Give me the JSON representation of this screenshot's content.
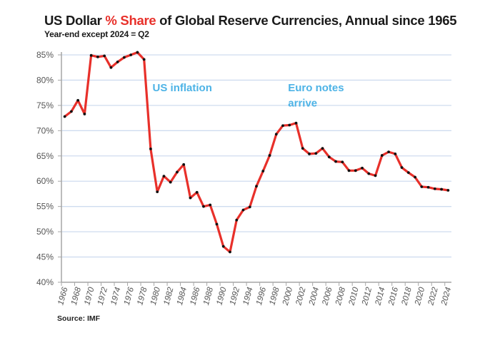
{
  "header": {
    "title_prefix": "US Dollar ",
    "title_highlight": "% Share",
    "title_suffix": " of Global Reserve Currencies, Annual since 1965",
    "subtitle": "Year-end except 2024 = Q2"
  },
  "footer": {
    "source": "Source: IMF"
  },
  "colors": {
    "line": "#e8302a",
    "marker": "#111111",
    "grid": "#cfdcef",
    "axis": "#a6a6a6",
    "annotation": "#4db3e6",
    "title_highlight": "#e8302a"
  },
  "chart_data": {
    "type": "line",
    "title": "US Dollar % Share of Global Reserve Currencies, Annual since 1965",
    "subtitle": "Year-end except 2024 = Q2",
    "xlabel": "",
    "ylabel": "",
    "ylim": [
      40,
      85
    ],
    "y_ticks": [
      40,
      45,
      50,
      55,
      60,
      65,
      70,
      75,
      80,
      85
    ],
    "y_tick_labels": [
      "40%",
      "45%",
      "50%",
      "55%",
      "60%",
      "65%",
      "70%",
      "75%",
      "80%",
      "85%"
    ],
    "x_tick_labels": [
      "1966",
      "1968",
      "1970",
      "1972",
      "1974",
      "1976",
      "1978",
      "1980",
      "1982",
      "1984",
      "1986",
      "1988",
      "1990",
      "1992",
      "1994",
      "1996",
      "1998",
      "2000",
      "2002",
      "2004",
      "2006",
      "2008",
      "2010",
      "2012",
      "2014",
      "2016",
      "2018",
      "2020",
      "2022",
      "2024"
    ],
    "grid": true,
    "legend": "none",
    "x": [
      1966,
      1967,
      1968,
      1969,
      1970,
      1971,
      1972,
      1973,
      1974,
      1975,
      1976,
      1977,
      1978,
      1979,
      1980,
      1981,
      1982,
      1983,
      1984,
      1985,
      1986,
      1987,
      1988,
      1989,
      1990,
      1991,
      1992,
      1993,
      1994,
      1995,
      1996,
      1997,
      1998,
      1999,
      2000,
      2001,
      2002,
      2003,
      2004,
      2005,
      2006,
      2007,
      2008,
      2009,
      2010,
      2011,
      2012,
      2013,
      2014,
      2015,
      2016,
      2017,
      2018,
      2019,
      2020,
      2021,
      2022,
      2023,
      2024
    ],
    "series": [
      {
        "name": "US Dollar % share",
        "values": [
          72.8,
          73.8,
          76.0,
          73.3,
          84.9,
          84.6,
          84.8,
          82.5,
          83.6,
          84.5,
          85.0,
          85.5,
          84.1,
          66.4,
          57.9,
          61.0,
          59.8,
          61.8,
          63.3,
          56.7,
          57.8,
          55.0,
          55.3,
          51.5,
          47.1,
          46.0,
          52.3,
          54.3,
          54.9,
          59.0,
          62.0,
          65.1,
          69.3,
          71.0,
          71.1,
          71.5,
          66.5,
          65.4,
          65.5,
          66.5,
          64.8,
          63.9,
          63.8,
          62.1,
          62.1,
          62.6,
          61.5,
          61.1,
          65.1,
          65.8,
          65.4,
          62.7,
          61.7,
          60.8,
          58.9,
          58.8,
          58.5,
          58.4,
          58.2
        ]
      }
    ],
    "annotations": [
      {
        "text": "US inflation",
        "x": 1979.5,
        "y": 78.5
      },
      {
        "text": "Euro notes",
        "x": 2000,
        "y": 78.5
      },
      {
        "text": "arrive",
        "x": 2000,
        "y": 75.5
      }
    ],
    "source": "Source: IMF"
  }
}
